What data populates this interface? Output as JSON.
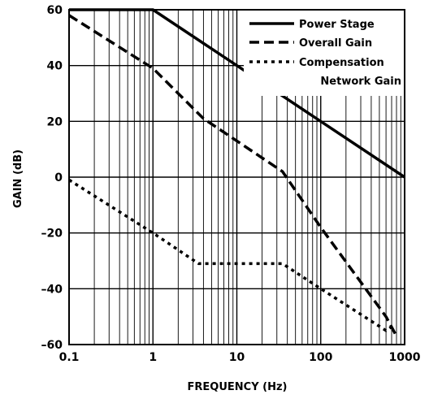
{
  "chart_data": {
    "type": "line",
    "xlabel": "FREQUENCY (Hz)",
    "ylabel": "GAIN (dB)",
    "x_scale": "log",
    "xlim": [
      0.1,
      1000
    ],
    "ylim": [
      -60,
      60
    ],
    "x_ticks": [
      0.1,
      1,
      10,
      100,
      1000
    ],
    "x_tick_labels": [
      "0.1",
      "1",
      "10",
      "100",
      "1000"
    ],
    "y_ticks": [
      60,
      40,
      20,
      0,
      -20,
      -40,
      -60
    ],
    "y_tick_labels": [
      "60",
      "40",
      "20",
      "0",
      "–20",
      "–40",
      "–60"
    ],
    "grid": true,
    "legend_position": "top-right",
    "series": [
      {
        "name": "Power Stage",
        "line_style": "solid",
        "x": [
          0.1,
          1,
          1000
        ],
        "y": [
          60,
          60,
          0
        ]
      },
      {
        "name": "Overall Gain",
        "line_style": "dashed",
        "x": [
          0.1,
          1,
          4,
          35,
          100,
          600,
          800
        ],
        "y": [
          58,
          39,
          21,
          2,
          -18,
          -50,
          -57
        ]
      },
      {
        "name": "Compensation",
        "name_line2": "Network Gain",
        "line_style": "dotted",
        "x": [
          0.1,
          1,
          3.5,
          35,
          100,
          600,
          750
        ],
        "y": [
          -1,
          -20,
          -31,
          -31,
          -40,
          -55,
          -53
        ]
      }
    ]
  }
}
